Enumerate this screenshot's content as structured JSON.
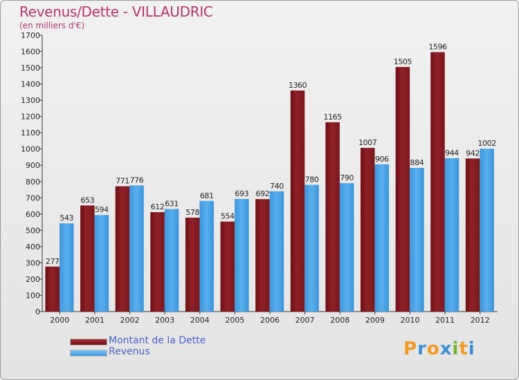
{
  "chart_data": {
    "type": "bar",
    "title": "Revenus/Dette - VILLAUDRIC",
    "subtitle": "(en milliers d'€)",
    "categories": [
      "2000",
      "2001",
      "2002",
      "2003",
      "2004",
      "2005",
      "2006",
      "2007",
      "2008",
      "2009",
      "2010",
      "2011",
      "2012"
    ],
    "ylim": [
      0,
      1700
    ],
    "yticks": [
      0,
      100,
      200,
      300,
      400,
      500,
      600,
      700,
      800,
      900,
      1000,
      1100,
      1200,
      1300,
      1400,
      1500,
      1600,
      1700
    ],
    "series": [
      {
        "name": "Montant de la Dette",
        "color": "#8b1a1f",
        "values": [
          277,
          653,
          771,
          612,
          578,
          554,
          692,
          1360,
          1165,
          1007,
          1505,
          1596,
          942
        ]
      },
      {
        "name": "Revenus",
        "color": "#4aa3e6",
        "values": [
          543,
          594,
          776,
          631,
          681,
          693,
          740,
          780,
          790,
          906,
          884,
          944,
          1002
        ]
      }
    ],
    "legend": "bottom-left",
    "grid": false
  },
  "logo": {
    "text": "Proxiti",
    "letters": [
      {
        "ch": "P",
        "color": "#f29a22"
      },
      {
        "ch": "r",
        "color": "#3b8fd8"
      },
      {
        "ch": "o",
        "color": "#f29a22"
      },
      {
        "ch": "x",
        "color": "#3b8fd8"
      },
      {
        "ch": "i",
        "color": "#72b72d"
      },
      {
        "ch": "t",
        "color": "#f29a22"
      },
      {
        "ch": "i",
        "color": "#3b8fd8"
      }
    ]
  }
}
